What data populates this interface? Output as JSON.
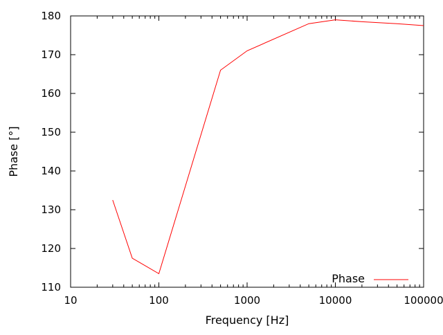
{
  "figure": {
    "background_color": "#ffffff",
    "border_color": "#000000",
    "text_color": "#000000"
  },
  "chart_data": {
    "type": "line",
    "title": "",
    "xlabel": "Frequency [Hz]",
    "ylabel": "Phase [°]",
    "x_scale": "log",
    "x_range": [
      10,
      100000
    ],
    "y_range": [
      110,
      180
    ],
    "x_tick_values": [
      10,
      100,
      1000,
      10000,
      100000
    ],
    "x_tick_labels": [
      "10",
      "100",
      "1000",
      "10000",
      "100000"
    ],
    "x_minor_ticks": "log-decades-2-to-9",
    "y_tick_values": [
      110,
      120,
      130,
      140,
      150,
      160,
      170,
      180
    ],
    "y_tick_labels": [
      "110",
      "120",
      "130",
      "140",
      "150",
      "160",
      "170",
      "180"
    ],
    "grid": false,
    "legend": {
      "position": "bottom-right-inside",
      "entries": [
        {
          "label": "Phase",
          "color": "#ff0000"
        }
      ]
    },
    "series": [
      {
        "name": "Phase",
        "color": "#ff0000",
        "points": [
          [
            30,
            132.5
          ],
          [
            50,
            117.5
          ],
          [
            100,
            113.5
          ],
          [
            500,
            166
          ],
          [
            1000,
            171
          ],
          [
            5000,
            178
          ],
          [
            10000,
            179
          ],
          [
            20000,
            178.5
          ],
          [
            50000,
            178
          ],
          [
            100000,
            177.5
          ]
        ]
      }
    ]
  }
}
